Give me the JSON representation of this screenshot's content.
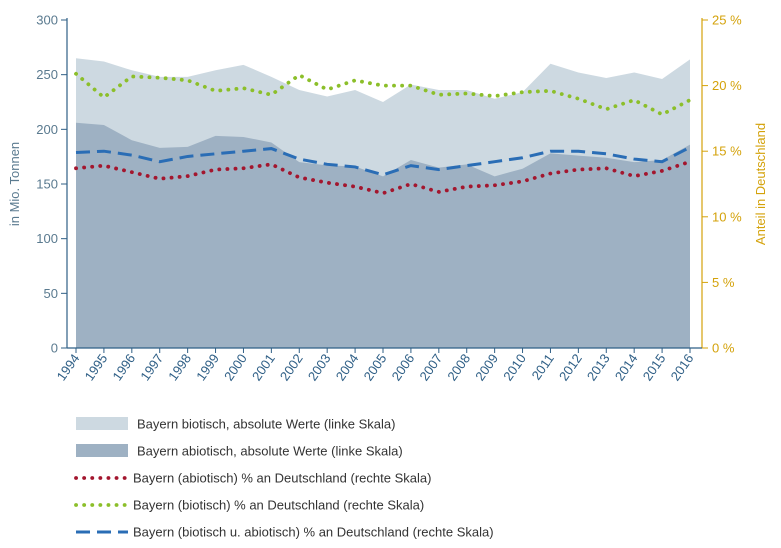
{
  "chart_data": {
    "type": "area",
    "x": [
      "1994",
      "1995",
      "1996",
      "1997",
      "1998",
      "1999",
      "2000",
      "2001",
      "2002",
      "2003",
      "2004",
      "2005",
      "2006",
      "2007",
      "2008",
      "2009",
      "2010",
      "2011",
      "2012",
      "2013",
      "2014",
      "2015",
      "2016"
    ],
    "x_labels": [
      "1994",
      "1995",
      "1996",
      "1997",
      "1998",
      "1999",
      "2000",
      "2001",
      "2002",
      "2003",
      "2004",
      "2005",
      "2006",
      "2007",
      "2008",
      "2009",
      "2010",
      "2011",
      "2012",
      "2013",
      "2014",
      "2015",
      "2016"
    ],
    "ylabel_left": "in Mio. Tonnen",
    "ylabel_right": "Anteil in Deutschland",
    "ylim_left": [
      0,
      300
    ],
    "ylim_right": [
      0,
      25
    ],
    "yticks_left": [
      "0",
      "50",
      "100",
      "150",
      "200",
      "250",
      "300"
    ],
    "yticks_right": [
      "0 %",
      "5 %",
      "10 %",
      "15 %",
      "20 %",
      "25 %"
    ],
    "series": [
      {
        "name": "Bayern biotisch, absolute Werte (linke Skala)",
        "type": "area",
        "axis": "left",
        "color": "#cdd9e1",
        "values": [
          265,
          262,
          254,
          248,
          248,
          254,
          259,
          248,
          236,
          230,
          236,
          225,
          241,
          236,
          236,
          228,
          234,
          260,
          252,
          247,
          252,
          246,
          264
        ]
      },
      {
        "name": "Bayern abiotisch, absolute Werte (linke Skala)",
        "type": "area",
        "axis": "left",
        "color": "#9eb1c3",
        "values": [
          206,
          204,
          190,
          183,
          184,
          194,
          193,
          188,
          170,
          167,
          166,
          157,
          172,
          165,
          168,
          157,
          164,
          178,
          176,
          174,
          170,
          172,
          186
        ]
      },
      {
        "name": "Bayern (abiotisch) % an Deutschland (rechte Skala)",
        "type": "line",
        "style": "dotted",
        "axis": "right",
        "color": "#a3162e",
        "values": [
          13.7,
          13.9,
          13.4,
          12.9,
          13.1,
          13.6,
          13.7,
          14.0,
          13.0,
          12.6,
          12.3,
          11.8,
          12.5,
          11.9,
          12.3,
          12.4,
          12.7,
          13.3,
          13.6,
          13.7,
          13.1,
          13.5,
          14.2
        ]
      },
      {
        "name": "Bayern (biotisch) % an Deutschland (rechte Skala)",
        "type": "line",
        "style": "dotted",
        "axis": "right",
        "color": "#8cbf2a",
        "values": [
          20.9,
          19.1,
          20.7,
          20.6,
          20.4,
          19.6,
          19.8,
          19.3,
          20.8,
          19.7,
          20.4,
          20.0,
          20.0,
          19.3,
          19.4,
          19.2,
          19.5,
          19.6,
          19.0,
          18.2,
          18.9,
          17.8,
          18.9
        ]
      },
      {
        "name": "Bayern (biotisch u. abiotisch) % an Deutschland (rechte Skala)",
        "type": "line",
        "style": "dashed",
        "axis": "right",
        "color": "#2a6db5",
        "values": [
          14.9,
          15.0,
          14.7,
          14.2,
          14.6,
          14.8,
          15.0,
          15.2,
          14.4,
          14.0,
          13.8,
          13.2,
          13.9,
          13.6,
          13.9,
          14.2,
          14.5,
          15.0,
          15.0,
          14.8,
          14.4,
          14.2,
          15.3
        ]
      }
    ]
  }
}
